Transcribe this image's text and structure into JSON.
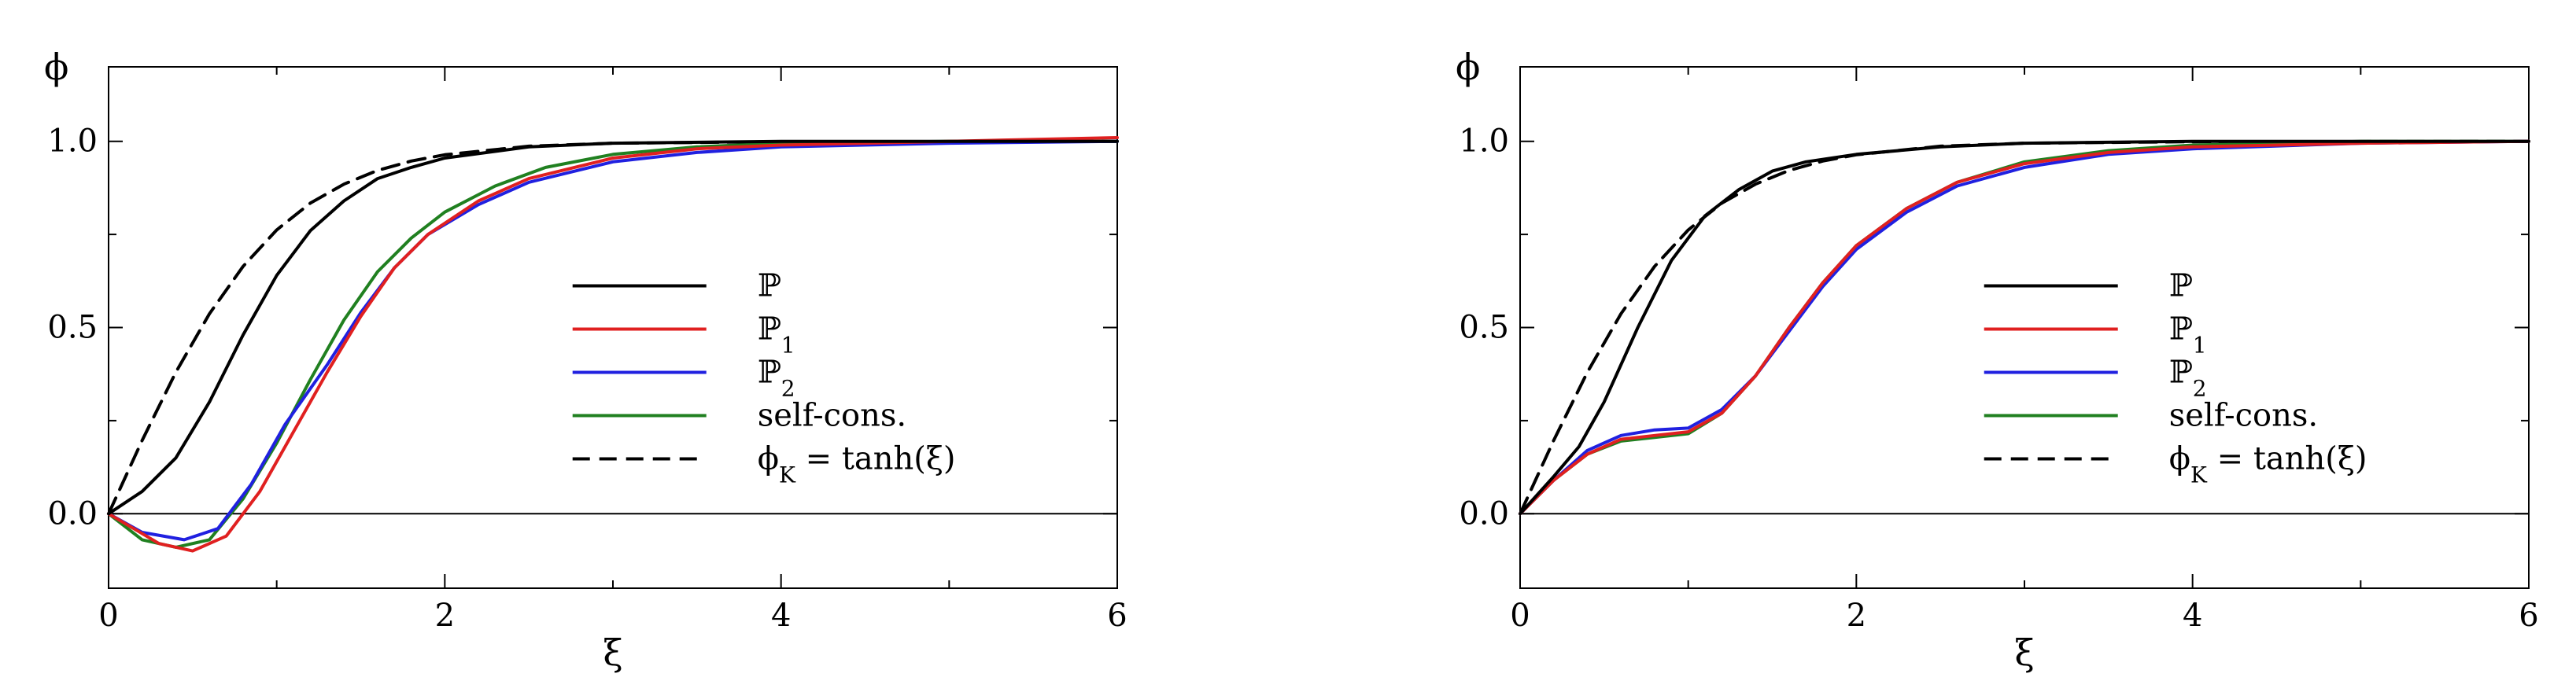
{
  "chart_data": [
    {
      "type": "line",
      "xlabel": "ξ",
      "ylabel": "ϕ",
      "xlim": [
        0,
        6
      ],
      "ylim": [
        -0.2,
        1.2
      ],
      "xticks": [
        "0",
        "2",
        "4",
        "6"
      ],
      "yticks": [
        "0.0",
        "0.5",
        "1.0"
      ],
      "grid": false,
      "legend_position": "center-right",
      "series": [
        {
          "name": "ℙ",
          "color": "#000000",
          "dash": "solid",
          "points": [
            [
              0,
              0
            ],
            [
              0.2,
              0.06
            ],
            [
              0.4,
              0.15
            ],
            [
              0.6,
              0.3
            ],
            [
              0.8,
              0.48
            ],
            [
              1.0,
              0.64
            ],
            [
              1.2,
              0.76
            ],
            [
              1.4,
              0.84
            ],
            [
              1.6,
              0.9
            ],
            [
              1.8,
              0.93
            ],
            [
              2.0,
              0.955
            ],
            [
              2.5,
              0.985
            ],
            [
              3.0,
              0.995
            ],
            [
              4.0,
              1.0
            ],
            [
              6.0,
              1.0
            ]
          ]
        },
        {
          "name": "ℙ₁",
          "color": "#e02020",
          "dash": "solid",
          "points": [
            [
              0,
              0
            ],
            [
              0.3,
              -0.08
            ],
            [
              0.5,
              -0.1
            ],
            [
              0.7,
              -0.06
            ],
            [
              0.9,
              0.06
            ],
            [
              1.1,
              0.22
            ],
            [
              1.3,
              0.38
            ],
            [
              1.5,
              0.53
            ],
            [
              1.7,
              0.66
            ],
            [
              1.9,
              0.75
            ],
            [
              2.2,
              0.84
            ],
            [
              2.5,
              0.9
            ],
            [
              3.0,
              0.955
            ],
            [
              3.5,
              0.98
            ],
            [
              4.0,
              0.99
            ],
            [
              5.0,
              1.0
            ],
            [
              6.0,
              1.01
            ]
          ]
        },
        {
          "name": "ℙ₂",
          "color": "#2020e0",
          "dash": "solid",
          "points": [
            [
              0,
              0
            ],
            [
              0.2,
              -0.05
            ],
            [
              0.45,
              -0.07
            ],
            [
              0.65,
              -0.04
            ],
            [
              0.85,
              0.08
            ],
            [
              1.05,
              0.24
            ],
            [
              1.3,
              0.4
            ],
            [
              1.5,
              0.54
            ],
            [
              1.7,
              0.66
            ],
            [
              1.9,
              0.75
            ],
            [
              2.2,
              0.83
            ],
            [
              2.5,
              0.89
            ],
            [
              3.0,
              0.945
            ],
            [
              3.5,
              0.97
            ],
            [
              4.0,
              0.985
            ],
            [
              5.0,
              0.995
            ],
            [
              6.0,
              1.0
            ]
          ]
        },
        {
          "name": "self-cons.",
          "color": "#208020",
          "dash": "solid",
          "points": [
            [
              0,
              0
            ],
            [
              0.2,
              -0.07
            ],
            [
              0.4,
              -0.09
            ],
            [
              0.6,
              -0.07
            ],
            [
              0.8,
              0.04
            ],
            [
              1.0,
              0.19
            ],
            [
              1.2,
              0.36
            ],
            [
              1.4,
              0.52
            ],
            [
              1.6,
              0.65
            ],
            [
              1.8,
              0.74
            ],
            [
              2.0,
              0.81
            ],
            [
              2.3,
              0.88
            ],
            [
              2.6,
              0.93
            ],
            [
              3.0,
              0.965
            ],
            [
              3.5,
              0.985
            ],
            [
              4.0,
              0.995
            ],
            [
              5.0,
              1.0
            ],
            [
              6.0,
              1.0
            ]
          ]
        },
        {
          "name": "ϕ_K = tanh(ξ)",
          "color": "#000000",
          "dash": "dashed",
          "points": [
            [
              0,
              0
            ],
            [
              0.2,
              0.197
            ],
            [
              0.4,
              0.38
            ],
            [
              0.6,
              0.537
            ],
            [
              0.8,
              0.664
            ],
            [
              1.0,
              0.762
            ],
            [
              1.2,
              0.834
            ],
            [
              1.4,
              0.885
            ],
            [
              1.6,
              0.922
            ],
            [
              1.8,
              0.947
            ],
            [
              2.0,
              0.964
            ],
            [
              2.5,
              0.987
            ],
            [
              3.0,
              0.995
            ],
            [
              4.0,
              0.999
            ],
            [
              6.0,
              1.0
            ]
          ]
        }
      ]
    },
    {
      "type": "line",
      "xlabel": "ξ",
      "ylabel": "ϕ",
      "xlim": [
        0,
        6
      ],
      "ylim": [
        -0.2,
        1.2
      ],
      "xticks": [
        "0",
        "2",
        "4",
        "6"
      ],
      "yticks": [
        "0.0",
        "0.5",
        "1.0"
      ],
      "grid": false,
      "legend_position": "center-right",
      "series": [
        {
          "name": "ℙ",
          "color": "#000000",
          "dash": "solid",
          "points": [
            [
              0,
              0
            ],
            [
              0.1,
              0.05
            ],
            [
              0.2,
              0.1
            ],
            [
              0.35,
              0.18
            ],
            [
              0.5,
              0.3
            ],
            [
              0.7,
              0.5
            ],
            [
              0.9,
              0.68
            ],
            [
              1.1,
              0.8
            ],
            [
              1.3,
              0.87
            ],
            [
              1.5,
              0.92
            ],
            [
              1.7,
              0.945
            ],
            [
              2.0,
              0.965
            ],
            [
              2.5,
              0.985
            ],
            [
              3.0,
              0.995
            ],
            [
              4.0,
              1.0
            ],
            [
              6.0,
              1.0
            ]
          ]
        },
        {
          "name": "ℙ₁",
          "color": "#e02020",
          "dash": "solid",
          "points": [
            [
              0,
              0
            ],
            [
              0.2,
              0.09
            ],
            [
              0.4,
              0.16
            ],
            [
              0.6,
              0.2
            ],
            [
              0.8,
              0.21
            ],
            [
              1.0,
              0.22
            ],
            [
              1.2,
              0.27
            ],
            [
              1.4,
              0.37
            ],
            [
              1.6,
              0.5
            ],
            [
              1.8,
              0.62
            ],
            [
              2.0,
              0.72
            ],
            [
              2.3,
              0.82
            ],
            [
              2.6,
              0.89
            ],
            [
              3.0,
              0.94
            ],
            [
              3.5,
              0.97
            ],
            [
              4.0,
              0.985
            ],
            [
              5.0,
              0.995
            ],
            [
              6.0,
              1.0
            ]
          ]
        },
        {
          "name": "ℙ₂",
          "color": "#2020e0",
          "dash": "solid",
          "points": [
            [
              0,
              0
            ],
            [
              0.2,
              0.09
            ],
            [
              0.4,
              0.17
            ],
            [
              0.6,
              0.21
            ],
            [
              0.8,
              0.225
            ],
            [
              1.0,
              0.23
            ],
            [
              1.2,
              0.28
            ],
            [
              1.4,
              0.37
            ],
            [
              1.6,
              0.49
            ],
            [
              1.8,
              0.61
            ],
            [
              2.0,
              0.71
            ],
            [
              2.3,
              0.81
            ],
            [
              2.6,
              0.88
            ],
            [
              3.0,
              0.93
            ],
            [
              3.5,
              0.965
            ],
            [
              4.0,
              0.98
            ],
            [
              5.0,
              0.995
            ],
            [
              6.0,
              1.0
            ]
          ]
        },
        {
          "name": "self-cons.",
          "color": "#208020",
          "dash": "solid",
          "points": [
            [
              0,
              0
            ],
            [
              0.2,
              0.09
            ],
            [
              0.4,
              0.16
            ],
            [
              0.6,
              0.195
            ],
            [
              0.8,
              0.205
            ],
            [
              1.0,
              0.215
            ],
            [
              1.2,
              0.27
            ],
            [
              1.4,
              0.37
            ],
            [
              1.6,
              0.5
            ],
            [
              1.8,
              0.62
            ],
            [
              2.0,
              0.72
            ],
            [
              2.3,
              0.82
            ],
            [
              2.6,
              0.89
            ],
            [
              3.0,
              0.945
            ],
            [
              3.5,
              0.975
            ],
            [
              4.0,
              0.99
            ],
            [
              5.0,
              1.0
            ],
            [
              6.0,
              1.0
            ]
          ]
        },
        {
          "name": "ϕ_K = tanh(ξ)",
          "color": "#000000",
          "dash": "dashed",
          "points": [
            [
              0,
              0
            ],
            [
              0.2,
              0.197
            ],
            [
              0.4,
              0.38
            ],
            [
              0.6,
              0.537
            ],
            [
              0.8,
              0.664
            ],
            [
              1.0,
              0.762
            ],
            [
              1.2,
              0.834
            ],
            [
              1.4,
              0.885
            ],
            [
              1.6,
              0.922
            ],
            [
              1.8,
              0.947
            ],
            [
              2.0,
              0.964
            ],
            [
              2.5,
              0.987
            ],
            [
              3.0,
              0.995
            ],
            [
              4.0,
              0.999
            ],
            [
              6.0,
              1.0
            ]
          ]
        }
      ]
    }
  ]
}
